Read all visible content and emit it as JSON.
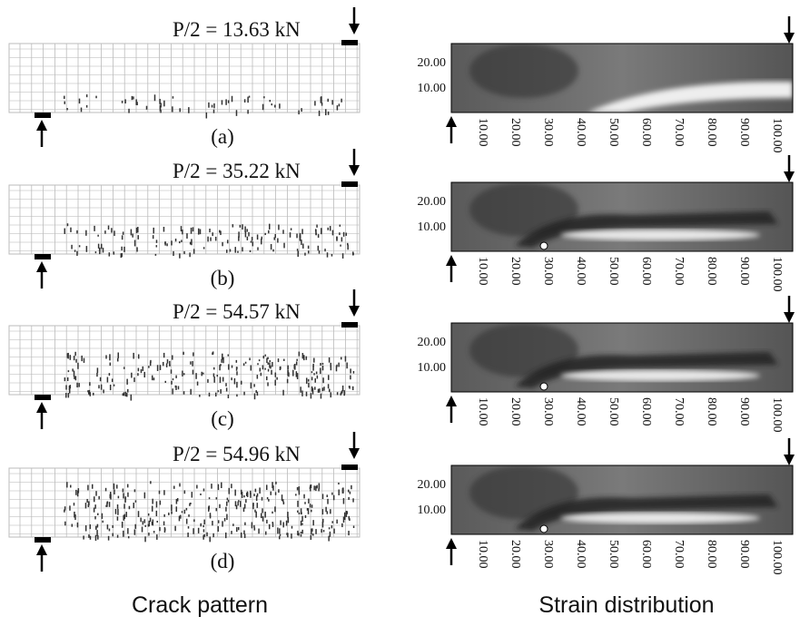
{
  "panels": [
    {
      "load": "P/2 = 13.63 kN",
      "label": "(a)"
    },
    {
      "load": "P/2 = 35.22 kN",
      "label": "(b)"
    },
    {
      "load": "P/2 = 54.57 kN",
      "label": "(c)"
    },
    {
      "load": "P/2 = 54.96 kN",
      "label": "(d)"
    }
  ],
  "strain_axes": {
    "y_ticks": [
      "20.00",
      "10.00"
    ],
    "x_ticks": [
      "10.00",
      "20.00",
      "30.00",
      "40.00",
      "50.00",
      "60.00",
      "70.00",
      "80.00",
      "90.00",
      "100.00"
    ]
  },
  "captions": {
    "left": "Crack pattern",
    "right": "Strain distribution"
  }
}
